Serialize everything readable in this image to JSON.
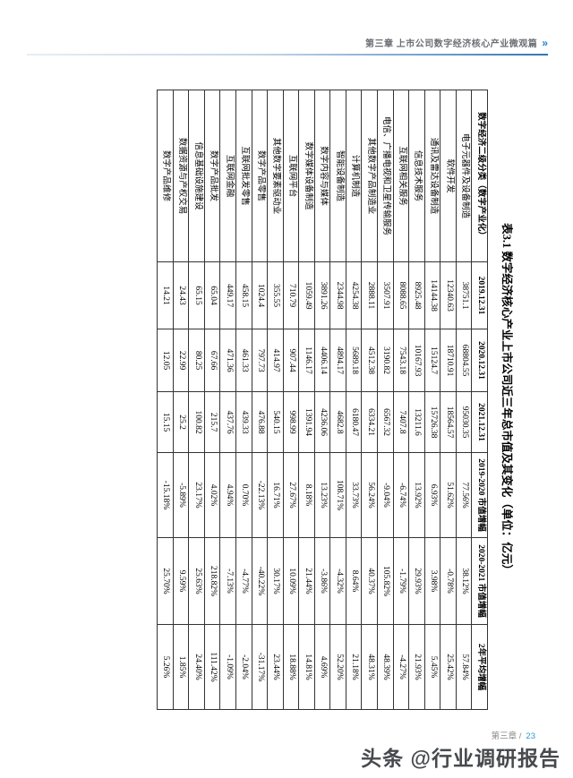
{
  "header": {
    "chapter_label": "第三章 上市公司数字经济核心产业微观篇",
    "chevrons": "»"
  },
  "table_title": "表3.1 数字经济核心产业上市公司近三年总市值及其变化（单位：亿元）",
  "table": {
    "header": [
      "数字经济二级分类（数字产业化）",
      "2019.12.31",
      "2020.12.31",
      "2021.12.31",
      "2019-2020 市值增幅",
      "2020-2021 市值增幅",
      "2年平均增幅"
    ],
    "rows": [
      [
        "电子元器件及设备制造",
        "38751.1",
        "68804.55",
        "95030.35",
        "77.56%",
        "38.12%",
        "57.84%"
      ],
      [
        "软件开发",
        "12340.63",
        "18710.91",
        "18564.57",
        "51.62%",
        "-0.78%",
        "25.42%"
      ],
      [
        "通讯及雷达设备制造",
        "14144.38",
        "15124.7",
        "15726.38",
        "6.93%",
        "3.98%",
        "5.45%"
      ],
      [
        "信息技术服务",
        "8925.48",
        "10167.93",
        "13211.6",
        "13.92%",
        "29.93%",
        "21.93%"
      ],
      [
        "互联网相关服务",
        "8088.65",
        "7543.18",
        "7407.8",
        "-6.74%",
        "-1.79%",
        "-4.27%"
      ],
      [
        "电信、广播电视和卫星传输服务",
        "3507.91",
        "3190.82",
        "6567.32",
        "-9.04%",
        "105.82%",
        "48.39%"
      ],
      [
        "其他数字产品制造业",
        "2888.11",
        "4512.38",
        "6334.21",
        "56.24%",
        "40.37%",
        "48.31%"
      ],
      [
        "计算机制造",
        "4254.38",
        "5689.18",
        "6180.47",
        "33.73%",
        "8.64%",
        "21.18%"
      ],
      [
        "智能设备制造",
        "2344.98",
        "4894.17",
        "4682.8",
        "108.71%",
        "-4.32%",
        "52.20%"
      ],
      [
        "数字内容与媒体",
        "3891.26",
        "4406.14",
        "4236.06",
        "13.23%",
        "-3.86%",
        "4.69%"
      ],
      [
        "数字媒体设备制造",
        "1059.49",
        "1146.17",
        "1391.94",
        "8.18%",
        "21.44%",
        "14.81%"
      ],
      [
        "互联网平台",
        "710.79",
        "907.44",
        "998.99",
        "27.67%",
        "10.09%",
        "18.88%"
      ],
      [
        "其他数字要素驱动业",
        "355.55",
        "414.97",
        "540.15",
        "16.71%",
        "30.17%",
        "23.44%"
      ],
      [
        "数字产品零售",
        "1024.4",
        "797.73",
        "476.88",
        "-22.13%",
        "-40.22%",
        "-31.17%"
      ],
      [
        "互联网批发零售",
        "458.15",
        "461.33",
        "439.33",
        "0.70%",
        "-4.77%",
        "-2.04%"
      ],
      [
        "互联网金融",
        "449.17",
        "471.36",
        "437.76",
        "4.94%",
        "-7.13%",
        "-1.09%"
      ],
      [
        "数字产品批发",
        "65.04",
        "67.66",
        "215.7",
        "4.02%",
        "218.82%",
        "111.42%"
      ],
      [
        "信息基础设施建设",
        "65.15",
        "80.25",
        "100.82",
        "23.17%",
        "25.63%",
        "24.40%"
      ],
      [
        "数据资源与产权交易",
        "24.43",
        "22.99",
        "25.2",
        "-5.89%",
        "9.59%",
        "1.85%"
      ],
      [
        "数字产品维修",
        "14.21",
        "12.05",
        "15.15",
        "-15.18%",
        "25.70%",
        "5.26%"
      ]
    ]
  },
  "footer": {
    "chapter": "第三章 /",
    "page_number": "23",
    "watermark": "头条 @行业调研报告"
  }
}
